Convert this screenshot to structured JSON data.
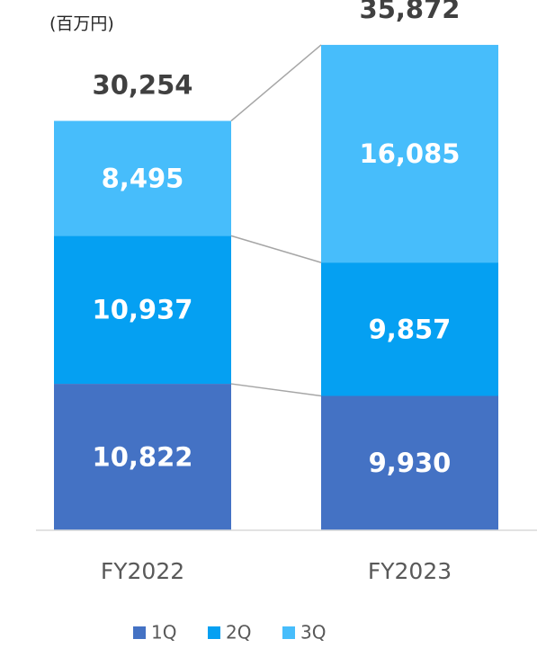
{
  "chart_data": {
    "type": "stacked_bar",
    "unit_label": "(百万円)",
    "categories": [
      "FY2022",
      "FY2023"
    ],
    "series": [
      {
        "name": "1Q",
        "color": "#4472c4",
        "values": [
          10822,
          9930
        ],
        "value_labels": [
          "10,822",
          "9,930"
        ]
      },
      {
        "name": "2Q",
        "color": "#05a0f2",
        "values": [
          10937,
          9857
        ],
        "value_labels": [
          "10,937",
          "9,857"
        ]
      },
      {
        "name": "3Q",
        "color": "#47bdfb",
        "values": [
          8495,
          16085
        ],
        "value_labels": [
          "8,495",
          "16,085"
        ]
      }
    ],
    "totals": [
      30254,
      35872
    ],
    "total_labels": [
      "30,254",
      "35,872"
    ],
    "ylim": [
      0,
      36000
    ]
  }
}
